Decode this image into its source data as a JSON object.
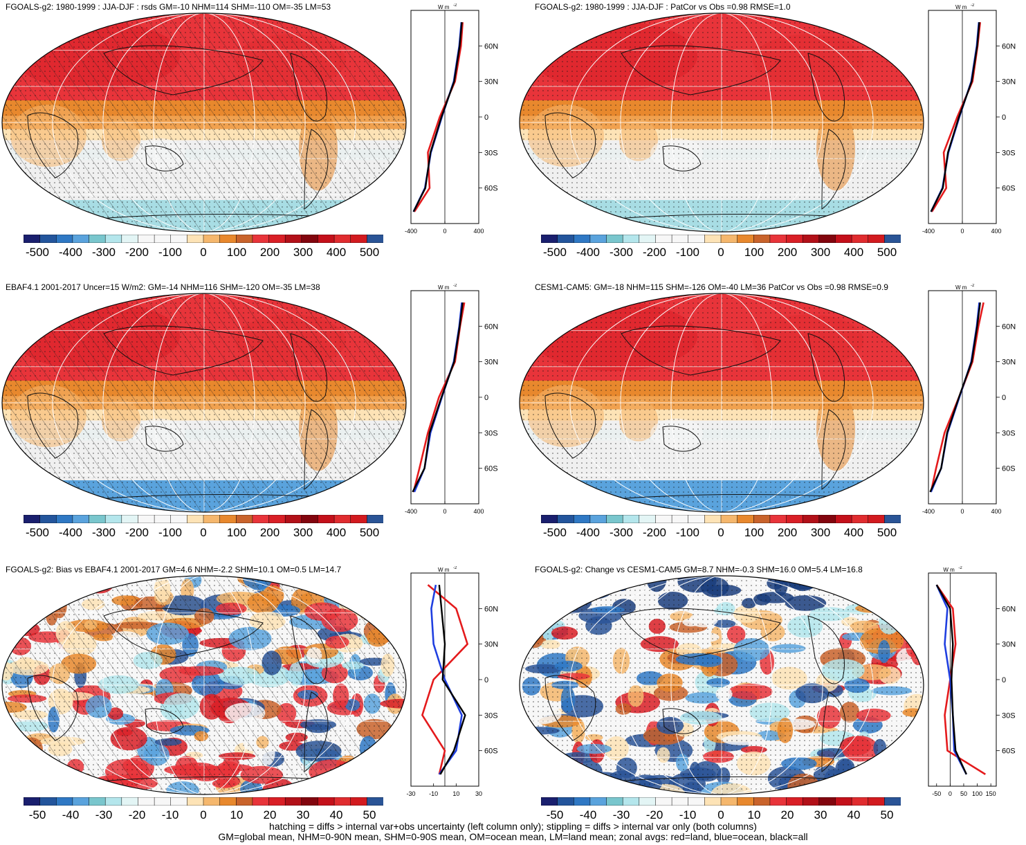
{
  "palette": [
    "#1a1f6e",
    "#23559c",
    "#2f78c4",
    "#5aa3dd",
    "#79c6cd",
    "#b4e6ec",
    "#e3f5f5",
    "#f7f7f7",
    "#f7f7f7",
    "#f7f7f7",
    "#fde3b6",
    "#f5b76d",
    "#e8882d",
    "#c9632b",
    "#e8343a",
    "#d91f26",
    "#b21018",
    "#82050e",
    "#c4101a",
    "#e02c2f",
    "#d21a1f",
    "#2a5496"
  ],
  "panels": [
    {
      "title": "FGOALS-g2: 1980-1999 : JJA-DJF : rsds GM=-10 NHM=114 SHM=-110 OM=-35 LM=53",
      "cbar": [
        "-500",
        "-400",
        "-300",
        "-200",
        "-100",
        "0",
        "100",
        "200",
        "300",
        "400",
        "500"
      ],
      "zonal_ticks": [
        "-400",
        "0",
        "400"
      ],
      "hatched": true,
      "style": "clim_a"
    },
    {
      "title": "FGOALS-g2: 1980-1999 : JJA-DJF : PatCor vs Obs =0.98 RMSE=1.0",
      "cbar": [
        "-500",
        "-400",
        "-300",
        "-200",
        "-100",
        "0",
        "100",
        "200",
        "300",
        "400",
        "500"
      ],
      "zonal_ticks": [
        "-400",
        "0",
        "400"
      ],
      "hatched": false,
      "style": "clim_b"
    },
    {
      "title": "EBAF4.1 2001-2017 Uncer=15 W/m2: GM=-14 NHM=116 SHM=-120 OM=-35 LM=38",
      "cbar": [
        "-500",
        "-400",
        "-300",
        "-200",
        "-100",
        "0",
        "100",
        "200",
        "300",
        "400",
        "500"
      ],
      "zonal_ticks": [
        "-400",
        "0",
        "400"
      ],
      "hatched": true,
      "style": "clim_c"
    },
    {
      "title": "CESM1-CAM5: GM=-18 NHM=115 SHM=-126 OM=-40 LM=36 PatCor vs Obs =0.98 RMSE=0.9",
      "cbar": [
        "-500",
        "-400",
        "-300",
        "-200",
        "-100",
        "0",
        "100",
        "200",
        "300",
        "400",
        "500"
      ],
      "zonal_ticks": [
        "-400",
        "0",
        "400"
      ],
      "hatched": false,
      "style": "clim_d"
    },
    {
      "title": "FGOALS-g2: Bias vs EBAF4.1 2001-2017 GM=4.6 NHM=-2.2 SHM=10.1 OM=0.5 LM=14.7",
      "cbar": [
        "-50",
        "-40",
        "-30",
        "-20",
        "-10",
        "0",
        "10",
        "20",
        "30",
        "40",
        "50"
      ],
      "zonal_ticks": [
        "-30",
        "-10",
        "10",
        "30"
      ],
      "hatched": true,
      "style": "diff_a"
    },
    {
      "title": "FGOALS-g2: Change vs CESM1-CAM5 GM=8.7 NHM=-0.3 SHM=16.0 OM=5.4 LM=16.8",
      "cbar": [
        "-50",
        "-40",
        "-30",
        "-20",
        "-10",
        "0",
        "10",
        "20",
        "30",
        "40",
        "50"
      ],
      "zonal_ticks": [
        "-50",
        "0",
        "50",
        "100",
        "150"
      ],
      "hatched": false,
      "style": "diff_b"
    }
  ],
  "lat_labels": [
    "60N",
    "30N",
    "0",
    "30S",
    "60S"
  ],
  "zonal_unit": "W m",
  "zonal_unit_exp": "-2",
  "footer": {
    "line1": "hatching = diffs > internal var+obs uncertainty (left column only); stippling = diffs > internal var only (both columns)",
    "line2": "GM=global mean, NHM=0-90N mean, SHM=0-90S mean, OM=ocean mean, LM=land mean; zonal avgs: red=land, blue=ocean, black=all"
  },
  "chart_data": [
    {
      "type": "heatmap",
      "title": "FGOALS-g2: 1980-1999 : JJA-DJF : rsds GM=-10 NHM=114 SHM=-110 OM=-35 LM=53",
      "colorbar": [
        -500,
        -400,
        -300,
        -200,
        -100,
        0,
        100,
        200,
        300,
        400,
        500
      ],
      "zonal_mean": {
        "lat": [
          80,
          60,
          30,
          0,
          -30,
          -60,
          -80
        ],
        "all": [
          200,
          175,
          110,
          -40,
          -170,
          -230,
          -370
        ],
        "land": [
          210,
          190,
          120,
          -60,
          -200,
          -180,
          -360
        ],
        "ocean": [
          195,
          170,
          105,
          -35,
          -165,
          -235,
          -370
        ]
      }
    },
    {
      "type": "heatmap",
      "title": "FGOALS-g2: 1980-1999 : JJA-DJF : PatCor vs Obs =0.98 RMSE=1.0",
      "colorbar": [
        -500,
        -400,
        -300,
        -200,
        -100,
        0,
        100,
        200,
        300,
        400,
        500
      ],
      "zonal_mean": {
        "lat": [
          80,
          60,
          30,
          0,
          -30,
          -60,
          -80
        ],
        "all": [
          200,
          175,
          110,
          -40,
          -170,
          -230,
          -370
        ],
        "land": [
          210,
          180,
          120,
          -60,
          -220,
          -190,
          -360
        ],
        "ocean": [
          195,
          170,
          105,
          -35,
          -165,
          -235,
          -370
        ]
      }
    },
    {
      "type": "heatmap",
      "title": "EBAF4.1 2001-2017 Uncer=15 W/m2: GM=-14 NHM=116 SHM=-120 OM=-35 LM=38",
      "colorbar": [
        -500,
        -400,
        -300,
        -200,
        -100,
        0,
        100,
        200,
        300,
        400,
        500
      ],
      "zonal_mean": {
        "lat": [
          80,
          60,
          30,
          0,
          -30,
          -60,
          -80
        ],
        "all": [
          210,
          175,
          110,
          -40,
          -180,
          -240,
          -380
        ],
        "land": [
          230,
          180,
          120,
          -70,
          -200,
          -300,
          -370
        ],
        "ocean": [
          200,
          170,
          105,
          -35,
          -170,
          -240,
          -360
        ]
      }
    },
    {
      "type": "heatmap",
      "title": "CESM1-CAM5: GM=-18 NHM=115 SHM=-126 OM=-40 LM=36 PatCor vs Obs =0.98 RMSE=0.9",
      "colorbar": [
        -500,
        -400,
        -300,
        -200,
        -100,
        0,
        100,
        200,
        300,
        400,
        500
      ],
      "zonal_mean": {
        "lat": [
          80,
          60,
          30,
          0,
          -30,
          -60,
          -80
        ],
        "all": [
          210,
          175,
          110,
          -40,
          -180,
          -250,
          -380
        ],
        "land": [
          250,
          190,
          120,
          -40,
          -210,
          -310,
          -370
        ],
        "ocean": [
          200,
          170,
          105,
          -35,
          -175,
          -250,
          -370
        ]
      }
    },
    {
      "type": "heatmap",
      "title": "FGOALS-g2: Bias vs EBAF4.1 2001-2017 GM=4.6 NHM=-2.2 SHM=10.1 OM=0.5 LM=14.7",
      "colorbar": [
        -50,
        -40,
        -30,
        -20,
        -10,
        0,
        10,
        20,
        30,
        40,
        50
      ],
      "zonal_mean": {
        "lat": [
          80,
          60,
          30,
          0,
          -30,
          -60,
          -80
        ],
        "all": [
          -5,
          -3,
          0,
          -2,
          18,
          8,
          -4
        ],
        "land": [
          -15,
          10,
          20,
          -10,
          -20,
          0,
          -5
        ],
        "ocean": [
          -8,
          -12,
          -10,
          0,
          15,
          10,
          -5
        ]
      }
    },
    {
      "type": "heatmap",
      "title": "FGOALS-g2: Change vs CESM1-CAM5 GM=8.7 NHM=-0.3 SHM=16.0 OM=5.4 LM=16.8",
      "colorbar": [
        -50,
        -40,
        -30,
        -20,
        -10,
        0,
        10,
        20,
        30,
        40,
        50
      ],
      "zonal_mean": {
        "lat": [
          80,
          60,
          30,
          0,
          -30,
          -60,
          -80
        ],
        "all": [
          -50,
          0,
          10,
          5,
          10,
          20,
          60
        ],
        "land": [
          -50,
          10,
          20,
          0,
          -20,
          -10,
          130
        ],
        "ocean": [
          -50,
          -10,
          -20,
          0,
          10,
          15,
          60
        ]
      }
    }
  ]
}
